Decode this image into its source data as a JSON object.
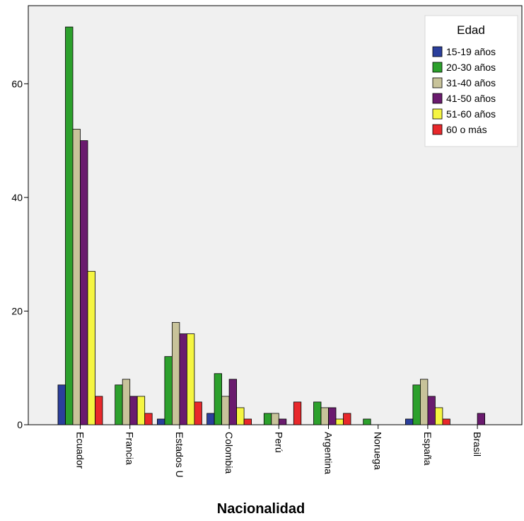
{
  "chart_data": {
    "type": "bar",
    "xlabel": "Nacionalidad",
    "ylabel": "",
    "categories": [
      "Ecuador",
      "Francia",
      "Estados U",
      "Colombia",
      "Perú",
      "Argentina",
      "Noruega",
      "España",
      "Brasil"
    ],
    "yticks": [
      0,
      20,
      40,
      60
    ],
    "ylim": [
      0,
      73.75
    ],
    "grid": false,
    "legend": {
      "title": "Edad",
      "placement": "top-right"
    },
    "series": [
      {
        "name": "15-19 años",
        "color": "#2b3f9c",
        "values": [
          7,
          0,
          1,
          2,
          0,
          0,
          0,
          1,
          0
        ]
      },
      {
        "name": "20-30 años",
        "color": "#2ca02c",
        "values": [
          70,
          7,
          12,
          9,
          2,
          4,
          1,
          7,
          0
        ]
      },
      {
        "name": "31-40 años",
        "color": "#c8c39a",
        "values": [
          52,
          8,
          18,
          5,
          2,
          3,
          0,
          8,
          0
        ]
      },
      {
        "name": "41-50 años",
        "color": "#6a1b6e",
        "values": [
          50,
          5,
          16,
          8,
          1,
          3,
          0,
          5,
          2
        ]
      },
      {
        "name": "51-60 años",
        "color": "#f5f542",
        "values": [
          27,
          5,
          16,
          3,
          0,
          1,
          0,
          3,
          0
        ]
      },
      {
        "name": "60  o más",
        "color": "#e8282b",
        "values": [
          5,
          2,
          4,
          1,
          4,
          2,
          0,
          1,
          0
        ]
      }
    ]
  }
}
